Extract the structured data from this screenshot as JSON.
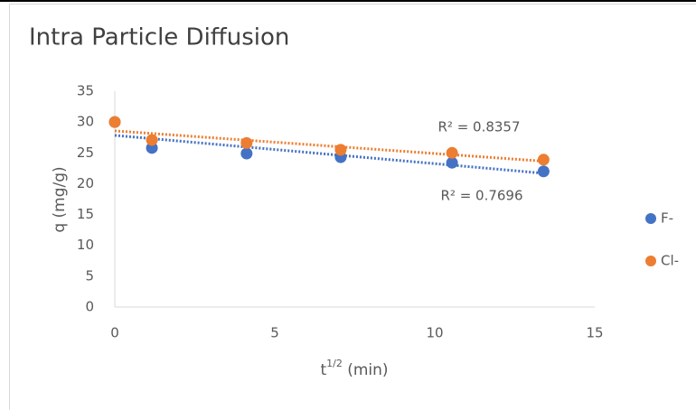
{
  "chart_data": {
    "type": "scatter",
    "title": "Intra Particle Diffusion",
    "y_label": "q (mg/g)",
    "x_label_parts": [
      "t",
      "1/2",
      " (min)"
    ],
    "series": [
      {
        "name": "F-",
        "color": "#4472c4",
        "x": [
          0,
          1.16,
          4.12,
          7.06,
          10.54,
          13.4
        ],
        "values": [
          30,
          25.8,
          24.9,
          24.3,
          23.4,
          22.0
        ],
        "trendline": "linear",
        "r2_label": "R² = 0.7696"
      },
      {
        "name": "Cl-",
        "color": "#ed7d31",
        "x": [
          0,
          1.16,
          4.12,
          7.06,
          10.54,
          13.4
        ],
        "values": [
          30,
          27.1,
          26.6,
          25.5,
          25.0,
          23.9
        ],
        "trendline": "linear",
        "r2_label": "R² = 0.8357"
      }
    ],
    "xlim": [
      0,
      15
    ],
    "xticks": [
      0,
      5,
      10,
      15
    ],
    "ylim": [
      0,
      35
    ],
    "yticks": [
      0,
      5,
      10,
      15,
      20,
      25,
      30,
      35
    ],
    "grid": false,
    "legend": "right"
  }
}
